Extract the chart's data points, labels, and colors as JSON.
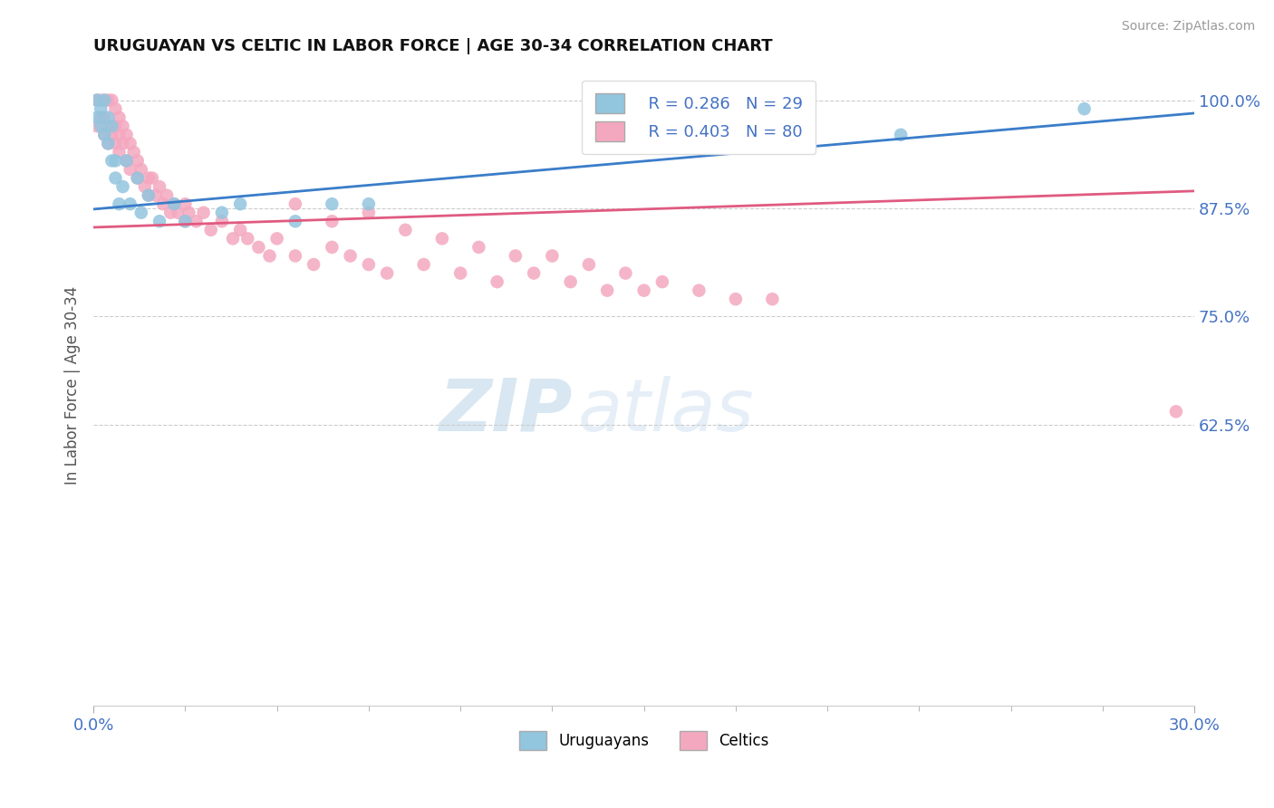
{
  "title": "URUGUAYAN VS CELTIC IN LABOR FORCE | AGE 30-34 CORRELATION CHART",
  "source": "Source: ZipAtlas.com",
  "ylabel": "In Labor Force | Age 30-34",
  "xlim": [
    0.0,
    0.3
  ],
  "ylim": [
    0.3,
    1.04
  ],
  "ytick_vals": [
    0.625,
    0.75,
    0.875,
    1.0
  ],
  "ytick_labels": [
    "62.5%",
    "75.0%",
    "87.5%",
    "100.0%"
  ],
  "xtick_vals": [
    0.0,
    0.3
  ],
  "xtick_labels": [
    "0.0%",
    "30.0%"
  ],
  "legend_r1": "R = 0.286",
  "legend_n1": "N = 29",
  "legend_r2": "R = 0.403",
  "legend_n2": "N = 80",
  "uruguayan_color": "#92C5DE",
  "celtic_color": "#F4A8C0",
  "uruguayan_line_color": "#3A7DC9",
  "celtic_line_color": "#E05A80",
  "watermark_zip": "ZIP",
  "watermark_atlas": "atlas",
  "uruguayan_x": [
    0.001,
    0.001,
    0.002,
    0.002,
    0.003,
    0.003,
    0.004,
    0.004,
    0.005,
    0.005,
    0.006,
    0.006,
    0.007,
    0.008,
    0.009,
    0.01,
    0.012,
    0.013,
    0.015,
    0.018,
    0.022,
    0.025,
    0.035,
    0.04,
    0.055,
    0.065,
    0.075,
    0.22,
    0.27
  ],
  "uruguayan_y": [
    1.0,
    0.98,
    0.99,
    0.97,
    1.0,
    0.96,
    0.98,
    0.95,
    0.97,
    0.93,
    0.91,
    0.93,
    0.88,
    0.9,
    0.93,
    0.88,
    0.91,
    0.87,
    0.89,
    0.86,
    0.88,
    0.86,
    0.87,
    0.88,
    0.86,
    0.88,
    0.88,
    0.96,
    0.99
  ],
  "celtic_x": [
    0.001,
    0.001,
    0.002,
    0.002,
    0.003,
    0.003,
    0.003,
    0.004,
    0.004,
    0.004,
    0.005,
    0.005,
    0.006,
    0.006,
    0.006,
    0.007,
    0.007,
    0.007,
    0.008,
    0.008,
    0.009,
    0.009,
    0.01,
    0.01,
    0.011,
    0.012,
    0.012,
    0.013,
    0.014,
    0.015,
    0.015,
    0.016,
    0.017,
    0.018,
    0.019,
    0.02,
    0.021,
    0.022,
    0.023,
    0.025,
    0.025,
    0.026,
    0.028,
    0.03,
    0.032,
    0.035,
    0.038,
    0.04,
    0.042,
    0.045,
    0.048,
    0.05,
    0.055,
    0.06,
    0.065,
    0.07,
    0.075,
    0.08,
    0.09,
    0.1,
    0.11,
    0.12,
    0.13,
    0.14,
    0.15,
    0.055,
    0.065,
    0.075,
    0.085,
    0.095,
    0.105,
    0.115,
    0.125,
    0.135,
    0.145,
    0.155,
    0.165,
    0.175,
    0.185,
    0.295
  ],
  "celtic_y": [
    1.0,
    0.97,
    1.0,
    0.98,
    1.0,
    0.98,
    0.96,
    1.0,
    0.97,
    0.95,
    1.0,
    0.96,
    0.99,
    0.97,
    0.95,
    0.98,
    0.96,
    0.94,
    0.97,
    0.95,
    0.96,
    0.93,
    0.95,
    0.92,
    0.94,
    0.93,
    0.91,
    0.92,
    0.9,
    0.91,
    0.89,
    0.91,
    0.89,
    0.9,
    0.88,
    0.89,
    0.87,
    0.88,
    0.87,
    0.88,
    0.86,
    0.87,
    0.86,
    0.87,
    0.85,
    0.86,
    0.84,
    0.85,
    0.84,
    0.83,
    0.82,
    0.84,
    0.82,
    0.81,
    0.83,
    0.82,
    0.81,
    0.8,
    0.81,
    0.8,
    0.79,
    0.8,
    0.79,
    0.78,
    0.78,
    0.88,
    0.86,
    0.87,
    0.85,
    0.84,
    0.83,
    0.82,
    0.82,
    0.81,
    0.8,
    0.79,
    0.78,
    0.77,
    0.77,
    0.64
  ],
  "uru_trend_x": [
    0.0,
    0.3
  ],
  "uru_trend_y": [
    0.874,
    0.985
  ],
  "cel_trend_x": [
    0.0,
    0.3
  ],
  "cel_trend_y": [
    0.853,
    0.895
  ]
}
